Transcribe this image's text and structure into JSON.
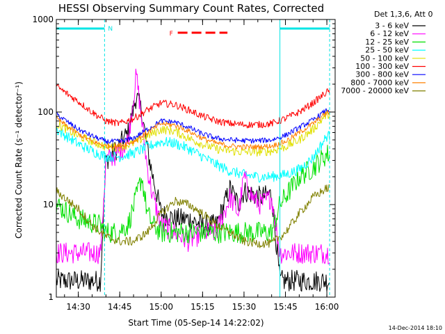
{
  "chart_data": {
    "type": "line",
    "title": "HESSI Observing Summary Count Rates, Corrected",
    "xlabel": "Start Time (05-Sep-14 14:22:02)",
    "ylabel": "Corrected Count Rate (s⁻¹ detector⁻¹)",
    "y_scale": "log",
    "ylim": [
      1,
      1000
    ],
    "xlim": [
      "14:22:02",
      "16:03:00"
    ],
    "x_ticks": [
      "14:30",
      "14:45",
      "15:00",
      "15:15",
      "15:30",
      "15:45",
      "16:00"
    ],
    "y_ticks": [
      "1",
      "10",
      "100",
      "1000"
    ],
    "grid": false,
    "legend_position": "right",
    "legend_header": "Det 1,3,6, Att 0",
    "timestamp": "14-Dec-2014 18:10",
    "flags": [
      {
        "label": "N",
        "color": "#00e5e5",
        "start": "14:22:02",
        "end": "14:39:30"
      },
      {
        "label": "",
        "color": "#00e5e5",
        "start": "15:43:00",
        "end": "16:01:00"
      },
      {
        "label": "F",
        "color": "#ff0000",
        "start": "15:06:00",
        "end": "15:24:00"
      }
    ],
    "saa_markers": [
      "14:39:30",
      "15:43:00",
      "16:01:00"
    ],
    "series": [
      {
        "name": "3 - 6 keV",
        "color": "#000000",
        "x": [
          "14:22",
          "14:30",
          "14:38",
          "14:40",
          "14:44",
          "14:48",
          "14:51",
          "14:53",
          "14:55",
          "14:57",
          "15:00",
          "15:05",
          "15:10",
          "15:15",
          "15:20",
          "15:25",
          "15:28",
          "15:30",
          "15:33",
          "15:36",
          "15:40",
          "15:43",
          "15:50",
          "16:00"
        ],
        "y": [
          1.5,
          1.5,
          1.5,
          30,
          40,
          60,
          150,
          100,
          40,
          20,
          8,
          7,
          7,
          6,
          6,
          15,
          10,
          14,
          13,
          12,
          13,
          1.5,
          1.5,
          1.5
        ]
      },
      {
        "name": "6 - 12 keV",
        "color": "#ff00ff",
        "x": [
          "14:22",
          "14:30",
          "14:38",
          "14:40",
          "14:44",
          "14:48",
          "14:51",
          "14:53",
          "14:55",
          "14:57",
          "15:00",
          "15:05",
          "15:10",
          "15:15",
          "15:20",
          "15:25",
          "15:28",
          "15:30",
          "15:33",
          "15:36",
          "15:40",
          "15:43",
          "15:50",
          "16:00"
        ],
        "y": [
          3,
          3,
          3,
          30,
          35,
          50,
          250,
          80,
          25,
          12,
          6,
          5,
          4,
          5,
          5,
          12,
          8,
          20,
          12,
          10,
          12,
          3,
          3,
          3
        ]
      },
      {
        "name": "12 - 25 keV",
        "color": "#00e000",
        "x": [
          "14:22",
          "14:30",
          "14:38",
          "14:40",
          "14:44",
          "14:48",
          "14:51",
          "14:53",
          "14:55",
          "14:57",
          "15:00",
          "15:05",
          "15:10",
          "15:15",
          "15:20",
          "15:25",
          "15:30",
          "15:35",
          "15:40",
          "15:43",
          "15:50",
          "15:55",
          "16:00"
        ],
        "y": [
          10,
          7,
          6,
          5,
          5,
          6,
          12,
          20,
          8,
          6,
          5,
          5,
          5,
          5,
          5,
          5,
          5,
          5,
          5,
          10,
          20,
          25,
          35
        ]
      },
      {
        "name": "25 - 50 keV",
        "color": "#00ffff",
        "x": [
          "14:22",
          "14:30",
          "14:35",
          "14:40",
          "14:45",
          "14:50",
          "14:55",
          "15:00",
          "15:05",
          "15:10",
          "15:15",
          "15:20",
          "15:25",
          "15:30",
          "15:35",
          "15:40",
          "15:45",
          "15:50",
          "15:55",
          "16:00"
        ],
        "y": [
          65,
          45,
          38,
          33,
          33,
          36,
          42,
          48,
          46,
          40,
          33,
          27,
          23,
          21,
          20,
          20,
          21,
          24,
          32,
          55
        ]
      },
      {
        "name": "50 - 100 keV",
        "color": "#e0e000",
        "x": [
          "14:22",
          "14:30",
          "14:35",
          "14:40",
          "14:45",
          "14:50",
          "14:55",
          "15:00",
          "15:05",
          "15:10",
          "15:15",
          "15:20",
          "15:25",
          "15:30",
          "15:35",
          "15:40",
          "15:45",
          "15:50",
          "15:55",
          "16:00"
        ],
        "y": [
          75,
          55,
          48,
          42,
          42,
          46,
          55,
          65,
          62,
          52,
          45,
          40,
          38,
          37,
          37,
          38,
          42,
          50,
          65,
          95
        ]
      },
      {
        "name": "100 - 300 keV",
        "color": "#ff0000",
        "x": [
          "14:22",
          "14:30",
          "14:35",
          "14:40",
          "14:45",
          "14:50",
          "14:55",
          "15:00",
          "15:05",
          "15:10",
          "15:15",
          "15:20",
          "15:25",
          "15:30",
          "15:35",
          "15:40",
          "15:45",
          "15:50",
          "15:55",
          "16:00"
        ],
        "y": [
          190,
          130,
          100,
          80,
          75,
          85,
          105,
          125,
          120,
          105,
          90,
          80,
          75,
          73,
          73,
          75,
          85,
          100,
          125,
          165
        ]
      },
      {
        "name": "300 - 800 keV",
        "color": "#0000ff",
        "x": [
          "14:22",
          "14:30",
          "14:35",
          "14:40",
          "14:45",
          "14:50",
          "14:55",
          "15:00",
          "15:05",
          "15:10",
          "15:15",
          "15:20",
          "15:25",
          "15:30",
          "15:35",
          "15:40",
          "15:45",
          "15:50",
          "15:55",
          "16:00"
        ],
        "y": [
          95,
          65,
          55,
          48,
          48,
          52,
          65,
          80,
          78,
          68,
          58,
          52,
          50,
          49,
          49,
          50,
          56,
          68,
          82,
          105
        ]
      },
      {
        "name": "800 - 7000 keV",
        "color": "#ff8000",
        "x": [
          "14:22",
          "14:30",
          "14:35",
          "14:40",
          "14:45",
          "14:50",
          "14:55",
          "15:00",
          "15:05",
          "15:10",
          "15:15",
          "15:20",
          "15:25",
          "15:30",
          "15:35",
          "15:40",
          "15:45",
          "15:50",
          "15:55",
          "16:00"
        ],
        "y": [
          85,
          58,
          48,
          43,
          43,
          48,
          60,
          75,
          72,
          62,
          52,
          46,
          43,
          42,
          42,
          43,
          48,
          60,
          75,
          98
        ]
      },
      {
        "name": "7000 - 20000 keV",
        "color": "#808000",
        "x": [
          "14:22",
          "14:30",
          "14:35",
          "14:40",
          "14:45",
          "14:50",
          "14:55",
          "15:00",
          "15:05",
          "15:10",
          "15:15",
          "15:20",
          "15:25",
          "15:30",
          "15:35",
          "15:40",
          "15:45",
          "15:50",
          "15:55",
          "16:00"
        ],
        "y": [
          14,
          9,
          6,
          4.5,
          4,
          4,
          5,
          8,
          11,
          10,
          8,
          6,
          5,
          4,
          3.8,
          3.8,
          5,
          8,
          12,
          15
        ]
      }
    ]
  }
}
